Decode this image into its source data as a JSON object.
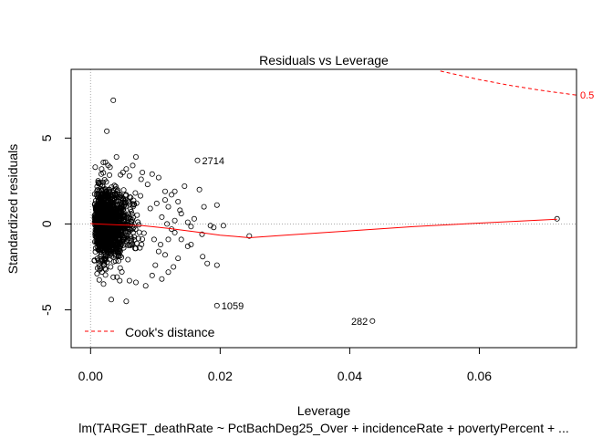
{
  "chart_data": {
    "type": "scatter",
    "title": "Residuals vs Leverage",
    "xlabel": "Leverage",
    "ylabel": "Standardized residuals",
    "subtitle": "lm(TARGET_deathRate ~ PctBachDeg25_Over + incidenceRate + povertyPercent +  ...",
    "xlim": [
      -0.003,
      0.075
    ],
    "ylim": [
      -7.2,
      9.0
    ],
    "x_ticks": [
      0.0,
      0.02,
      0.04,
      0.06
    ],
    "x_tick_labels": [
      "0.00",
      "0.02",
      "0.04",
      "0.06"
    ],
    "y_ticks": [
      -5,
      0,
      5
    ],
    "y_tick_labels": [
      "-5",
      "0",
      "5"
    ],
    "grid": false,
    "reference_lines": {
      "h": 0,
      "v": 0,
      "style": "dotted",
      "color": "#aaaaaa"
    },
    "legend": {
      "position": "bottom-left",
      "label": "Cook's distance",
      "style": "dashed",
      "color": "#ff0000"
    },
    "cooks_contour": {
      "label": "0.5",
      "color": "#ff0000",
      "x": [
        0.054,
        0.06,
        0.065,
        0.07,
        0.075
      ],
      "y": [
        8.9,
        8.4,
        8.05,
        7.75,
        7.5
      ]
    },
    "smoother": {
      "color": "#ff0000",
      "x": [
        0.0,
        0.004,
        0.008,
        0.012,
        0.016,
        0.02,
        0.0245,
        0.03,
        0.04,
        0.05,
        0.06,
        0.072
      ],
      "y": [
        0.02,
        -0.05,
        -0.1,
        -0.25,
        -0.45,
        -0.65,
        -0.8,
        -0.65,
        -0.4,
        -0.15,
        0.05,
        0.28
      ]
    },
    "labeled_points": [
      {
        "label": "2714",
        "x": 0.0165,
        "y": 3.7
      },
      {
        "label": "1059",
        "x": 0.0195,
        "y": -4.75
      },
      {
        "label": "282",
        "x": 0.0435,
        "y": -5.65
      }
    ],
    "points": [
      [
        0.0035,
        7.2
      ],
      [
        0.0025,
        5.4
      ],
      [
        0.004,
        3.9
      ],
      [
        0.007,
        3.9
      ],
      [
        0.0017,
        3.2
      ],
      [
        0.0023,
        3.6
      ],
      [
        0.003,
        3.3
      ],
      [
        0.0055,
        3.2
      ],
      [
        0.008,
        3.0
      ],
      [
        0.0095,
        2.9
      ],
      [
        0.0105,
        2.7
      ],
      [
        0.0115,
        1.9
      ],
      [
        0.0125,
        1.7
      ],
      [
        0.013,
        1.9
      ],
      [
        0.0145,
        2.2
      ],
      [
        0.0135,
        1.3
      ],
      [
        0.0115,
        1.4
      ],
      [
        0.012,
        1.0
      ],
      [
        0.0138,
        0.8
      ],
      [
        0.014,
        0.6
      ],
      [
        0.0168,
        2.0
      ],
      [
        0.0175,
        1.0
      ],
      [
        0.0195,
        1.1
      ],
      [
        0.0185,
        -0.1
      ],
      [
        0.015,
        0.1
      ],
      [
        0.016,
        0.3
      ],
      [
        0.019,
        -0.2
      ],
      [
        0.0205,
        -0.1
      ],
      [
        0.0155,
        -0.15
      ],
      [
        0.0172,
        -0.6
      ],
      [
        0.0245,
        -0.7
      ],
      [
        0.013,
        -0.5
      ],
      [
        0.014,
        -0.9
      ],
      [
        0.015,
        -1.3
      ],
      [
        0.0155,
        -1.2
      ],
      [
        0.0173,
        -1.9
      ],
      [
        0.018,
        -2.3
      ],
      [
        0.0195,
        -2.4
      ],
      [
        0.0135,
        -2.0
      ],
      [
        0.0128,
        -2.5
      ],
      [
        0.012,
        -2.8
      ],
      [
        0.011,
        -3.2
      ],
      [
        0.0095,
        -3.0
      ],
      [
        0.01,
        -2.4
      ],
      [
        0.0085,
        -3.6
      ],
      [
        0.007,
        -3.4
      ],
      [
        0.006,
        -3.3
      ],
      [
        0.0045,
        -3.3
      ],
      [
        0.0035,
        -3.1
      ],
      [
        0.0032,
        -4.4
      ],
      [
        0.0055,
        -4.5
      ],
      [
        0.002,
        -3.5
      ],
      [
        0.001,
        -2.9
      ],
      [
        0.0022,
        -2.6
      ],
      [
        0.0115,
        -1.8
      ],
      [
        0.0105,
        -1.6
      ],
      [
        0.012,
        -0.9
      ],
      [
        0.013,
        0.2
      ],
      [
        0.0195,
        -4.75
      ],
      [
        0.0435,
        -5.65
      ],
      [
        0.0165,
        3.7
      ],
      [
        0.072,
        0.3
      ],
      [
        0.0102,
        1.2
      ],
      [
        0.0092,
        0.9
      ],
      [
        0.011,
        0.4
      ],
      [
        0.0098,
        -0.9
      ],
      [
        0.0108,
        -1.2
      ],
      [
        0.0088,
        2.3
      ],
      [
        0.0078,
        2.6
      ],
      [
        0.0065,
        3.4
      ],
      [
        0.006,
        2.8
      ],
      [
        0.005,
        3.0
      ],
      [
        0.0118,
        0.0
      ],
      [
        0.0125,
        -0.3
      ]
    ]
  }
}
